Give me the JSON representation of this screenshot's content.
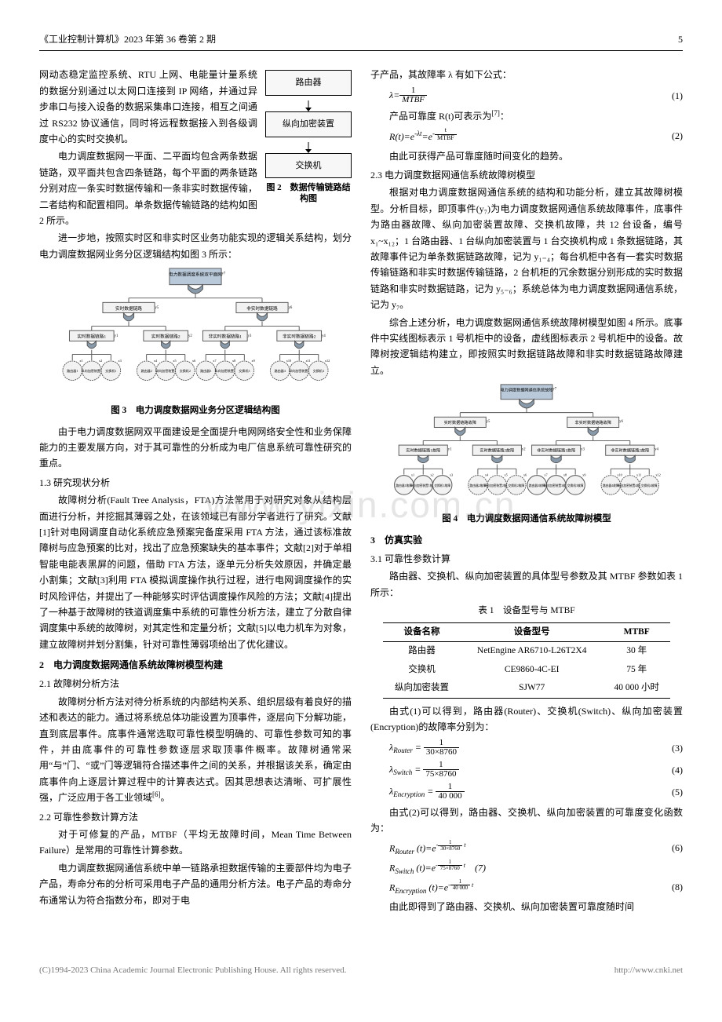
{
  "header": {
    "journal": "《工业控制计算机》2023 年第 36 卷第 2 期",
    "page": "5"
  },
  "left": {
    "p1": "网动态稳定监控系统、RTU 上网、电能量计量系统的数据分别通过以太网口连接到 IP 网络，并通过异步串口与接入设备的数据采集串口连接，相互之间通过 RS232 协议通信，同时将远程数据接入到各级调度中心的实时交换机。",
    "p2": "电力调度数据网一平面、二平面均包含两条数据链路，双平面共包含四条链路，每个平面的两条链路分别对应一条实时数据传输和一条非实时数据传输，二者结构和配置相同。单条数据传输链路的结构如图 2 所示。",
    "fig2": {
      "n1": "路由器",
      "n2": "纵向加密装置",
      "n3": "交换机",
      "cap": "图 2　数据传输链路结构图"
    },
    "p3": "进一步地，按照实时区和非实时区业务功能实现的逻辑关系结构，划分电力调度数据网业务分区逻辑结构如图 3 所示：",
    "fig3": {
      "top": "电力数据调度系统双平面网",
      "l2a": "实时数据链路",
      "l2b": "非实时数据链路",
      "l3a": "实时数据链路1",
      "l3b": "实时数据链路2",
      "l3c": "非实时数据链路1",
      "l3d": "非实时数据链路2",
      "leaves": [
        "路由器1",
        "纵向加密装置1",
        "交换机1",
        "路由器2",
        "纵向加密装置2",
        "交换机2",
        "路由器3",
        "纵向加密装置3",
        "交换机3",
        "路由器4",
        "纵向加密装置4",
        "交换机4"
      ],
      "leafsym": [
        "x1",
        "x2",
        "x3",
        "x4",
        "x5",
        "x6",
        "x7",
        "x8",
        "x9",
        "x10",
        "x11",
        "x12"
      ],
      "cap": "图 3　电力调度数据网业务分区逻辑结构图"
    },
    "p4": "由于电力调度数据网双平面建设是全面提升电网网络安全性和业务保障能力的主要发展方向，对于其可靠性的分析成为电厂信息系统可靠性研究的重点。",
    "s13": "1.3 研究现状分析",
    "p5": "故障树分析(Fault Tree Analysis，FTA)方法常用于对研究对象从结构层面进行分析，并挖掘其薄弱之处，在该领域已有部分学者进行了研究。文献[1]针对电网调度自动化系统应急预案完备度采用 FTA 方法，通过该标准故障树与应急预案的比对，找出了应急预案缺失的基本事件；文献[2]对于单相智能电能表黑屏的问题，借助 FTA 方法，逐单元分析失效原因，并确定最小割集；文献[3]利用 FTA 模拟调度操作执行过程，进行电网调度操作的实时风险评估，并提出了一种能够实时评估调度操作风险的方法；文献[4]提出了一种基于故障树的铁道调度集中系统的可靠性分析方法，建立了分散自律调度集中系统的故障树，对其定性和定量分析；文献[5]以电力机车为对象，建立故障树并划分割集，针对可靠性薄弱项给出了优化建议。",
    "s2": "2　电力调度数据网通信系统故障树模型构建",
    "s21": "2.1 故障树分析方法",
    "p6": "故障树分析方法对待分析系统的内部结构关系、组织层级有着良好的描述和表达的能力。通过将系统总体功能设置为顶事件，逐层向下分解功能，直到底层事件。底事件通常选取可靠性模型明确的、可靠性参数可知的事件，并由底事件的可靠性参数逐层求取顶事件概率。故障树通常采用“与”门、“或”门等逻辑符合描述事件之间的关系，并根据该关系，确定由底事件向上逐层计算过程中的计算表达式。因其思想表达清晰、可扩展性强，广泛应用于各工业领域",
    "p6ref": "[6]",
    "p6end": "。",
    "s22": "2.2 可靠性参数计算方法",
    "p7": "对于可修复的产品，MTBF（平均无故障时间，Mean Time Between Failure）是常用的可靠性计算参数。",
    "p8": "电力调度数据网通信系统中单一链路承担数据传输的主要部件均为电子产品，寿命分布的分析可采用电子产品的通用分析方法。电子产品的寿命分布通常认为符合指数分布，即对于电"
  },
  "right": {
    "p1": "子产品，其故障率 λ 有如下公式：",
    "eq1": {
      "lhs": "λ=",
      "num": "1",
      "den": "MTBF",
      "n": "(1)"
    },
    "p2a": "产品可靠度 R(t)可表示为",
    "p2ref": "[7]",
    "p2b": "：",
    "eq2": {
      "body": "R(t)=e^{-λt}=e^{-t/MTBF}",
      "n": "(2)"
    },
    "p3": "由此可获得产品可靠度随时间变化的趋势。",
    "s23": "2.3 电力调度数据网通信系统故障树模型",
    "p4": "根据对电力调度数据网通信系统的结构和功能分析，建立其故障树模型。分析目标，即顶事件(y₇)为电力调度数据网通信系统故障事件，底事件为路由器故障、纵向加密装置故障、交换机故障，共 12 台设备，编号 x₁~x₁₂；1 台路由器、1 台纵向加密装置与 1 台交换机构成 1 条数据链路，其故障事件记为单条数据链路故障，记为 y₁₋₄；每台机柜中各有一套实时数据传输链路和非实时数据传输链路，2 台机柜的冗余数据分别形成的实时数据链路和非实时数据链路，记为 y₅₋₆；系统总体为电力调度数据网通信系统，记为 y₇。",
    "p5": "综合上述分析，电力调度数据网通信系统故障树模型如图 4 所示。底事件中实线图标表示 1 号机柜中的设备，虚线图标表示 2 号机柜中的设备。故障树按逻辑结构建立，即按照实时数据链路故障和非实时数据链路故障建立。",
    "fig4": {
      "top": "电力调度数据网通信系统故障",
      "l2a": "实时数据链路故障",
      "l2b": "非实时数据链路故障",
      "l3": [
        "实时数据链路1故障",
        "实时数据链路2故障",
        "非实时数据链路1故障",
        "非实时数据链路2故障"
      ],
      "leaves": [
        "路由器1故障",
        "纵向加密装置1故障",
        "交换机1故障",
        "路由器2故障",
        "纵向加密装置2故障",
        "交换机2故障",
        "路由器3故障",
        "纵向加密装置3故障",
        "交换机3故障",
        "路由器4故障",
        "纵向加密装置4故障",
        "交换机4故障"
      ],
      "leafsym": [
        "x1",
        "x2",
        "x3",
        "x4",
        "x5",
        "x6",
        "x7",
        "x8",
        "x9",
        "x10",
        "x11",
        "x12"
      ],
      "cap": "图 4　电力调度数据网通信系统故障树模型"
    },
    "s3": "3　仿真实验",
    "s31": "3.1 可靠性参数计算",
    "p6": "路由器、交换机、纵向加密装置的具体型号参数及其 MTBF 参数如表 1 所示：",
    "table1": {
      "cap": "表 1　设备型号与 MTBF",
      "cols": [
        "设备名称",
        "设备型号",
        "MTBF"
      ],
      "rows": [
        [
          "路由器",
          "NetEngine AR6710-L26T2X4",
          "30 年"
        ],
        [
          "交换机",
          "CE9860-4C-EI",
          "75 年"
        ],
        [
          "纵向加密装置",
          "SJW77",
          "40 000 小时"
        ]
      ]
    },
    "p7": "由式(1)可以得到，路由器(Router)、交换机(Switch)、纵向加密装置(Encryption)的故障率分别为：",
    "eq3": {
      "lhs": "λ_Router =",
      "num": "1",
      "den": "30×8760",
      "n": "(3)"
    },
    "eq4": {
      "lhs": "λ_Switch =",
      "num": "1",
      "den": "75×8760",
      "n": "(4)"
    },
    "eq5": {
      "lhs": "λ_Encryption =",
      "num": "1",
      "den": "40 000",
      "n": "(5)"
    },
    "p8": "由式(2)可以得到，路由器、交换机、纵向加密装置的可靠度变化函数为：",
    "eq6": {
      "body": "R_Router (t)=e",
      "expnum": "1",
      "expden": "30×8760",
      "n": "(6)"
    },
    "eq7": {
      "body": "R_Switch (t)=e",
      "expnum": "1",
      "expden": "75×8760",
      "n": "(7)"
    },
    "eq8": {
      "body": "R_Encryption (t)=e",
      "expnum": "1",
      "expden": "40 000",
      "n": "(8)"
    },
    "p9": "由此即得到了路由器、交换机、纵向加密装置可靠度随时间"
  },
  "watermark": "www.yixin.com.cn",
  "footer": {
    "left": "(C)1994-2023 China Academic Journal Electronic Publishing House. All rights reserved.",
    "right": "http://www.cnki.net"
  },
  "colors": {
    "text": "#000000",
    "bg": "#ffffff",
    "gate": "#8899aa",
    "box": "#f2f2f2",
    "stroke": "#555",
    "root": "#b9c9d9"
  }
}
